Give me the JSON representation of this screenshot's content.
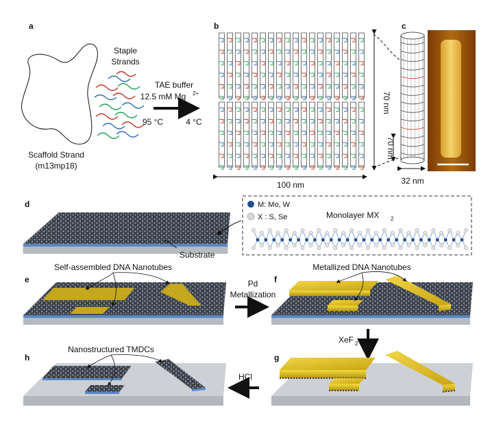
{
  "panels": {
    "a": {
      "label": "a",
      "staple_line1": "Staple",
      "staple_line2": "Strands",
      "buffer": "TAE buffer",
      "mg_conc": "12.5 mM Mg",
      "mg_charge": "2+",
      "temp_start": "95 °C",
      "temp_end": "4 °C",
      "scaffold_line1": "Scaffold Strand",
      "scaffold_line2": "(m13mp18)"
    },
    "b": {
      "label": "b",
      "height_label": "70 nm",
      "width_label": "100 nm"
    },
    "c": {
      "label": "c",
      "length_label": "70 nm",
      "diameter_label": "32 nm"
    },
    "d": {
      "label": "d",
      "legend_m": "M: Mo, W",
      "legend_x": "X : S, Se",
      "monolayer": "Monolayer MX",
      "monolayer_sub": "2",
      "substrate": "Substrate"
    },
    "e": {
      "label": "e",
      "caption": "Self-assembled DNA Nanotubes"
    },
    "ef_arrow": {
      "line1": "Pd",
      "line2": "Metallization"
    },
    "f": {
      "label": "f",
      "caption": "Metallized DNA Nanotubes"
    },
    "fg_arrow": {
      "text": "XeF",
      "sub": "2"
    },
    "g": {
      "label": "g"
    },
    "gh_arrow": {
      "text": "HCl"
    },
    "h": {
      "label": "h",
      "caption": "Nanostructured TMDCs"
    }
  },
  "colors": {
    "staple_red": "#c0392b",
    "staple_green": "#27a05a",
    "staple_blue": "#2e6fb5",
    "tmdc_dark": "#3b3f48",
    "gold": "#e2c21d",
    "substrate": "#cfd2d6"
  }
}
